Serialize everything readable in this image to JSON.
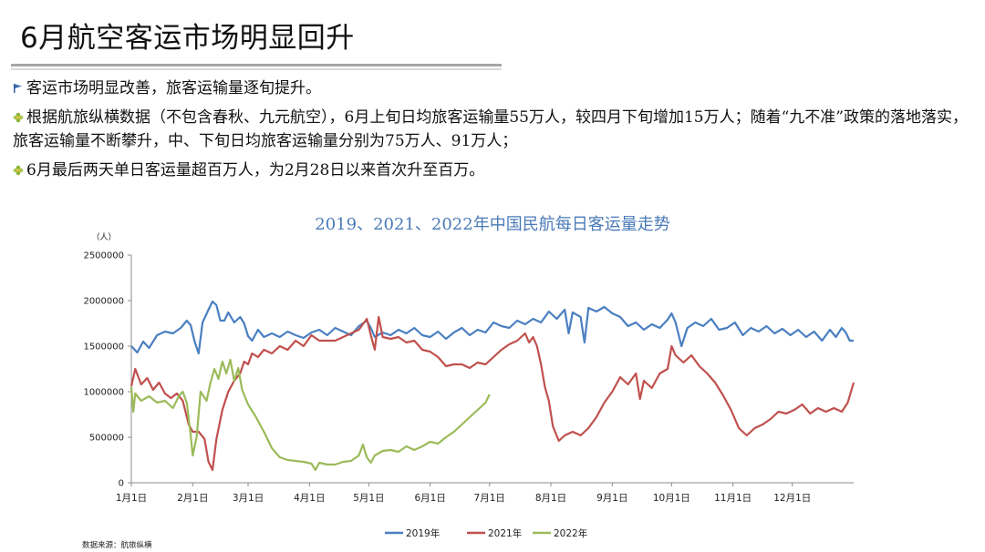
{
  "page": {
    "title": "6月航空客运市场明显回升"
  },
  "bullets": [
    {
      "icon": "flag-icon",
      "text": "客运市场明显改善，旅客运输量逐旬提升。"
    },
    {
      "icon": "flower-bullet-icon",
      "text": "根据航旅纵横数据（不包含春秋、九元航空），6月上旬日均旅客运输量55万人，较四月下旬增加15万人；随着“九不准”政策的落地落实，旅客运输量不断攀升，中、下旬日均旅客运输量分别为75万人、91万人；"
    },
    {
      "icon": "flower-bullet-icon",
      "text": "6月最后两天单日客运量超百万人，为2月28日以来首次升至百万。"
    }
  ],
  "source": "数据来源：航旅纵横",
  "chart_data": {
    "type": "line",
    "title": "2019、2021、2022年中国民航每日客运量走势",
    "ylabel": "（人）",
    "ylim": [
      0,
      2500000
    ],
    "yticks": [
      "0",
      "500000",
      "1000000",
      "1500000",
      "2000000",
      "2500000"
    ],
    "xlim": [
      1,
      366
    ],
    "xticks": [
      {
        "label": "1月1日",
        "day": 1
      },
      {
        "label": "2月1日",
        "day": 32
      },
      {
        "label": "3月1日",
        "day": 60
      },
      {
        "label": "4月1日",
        "day": 91
      },
      {
        "label": "5月1日",
        "day": 121
      },
      {
        "label": "6月1日",
        "day": 152
      },
      {
        "label": "7月1日",
        "day": 182
      },
      {
        "label": "8月1日",
        "day": 213
      },
      {
        "label": "9月1日",
        "day": 244
      },
      {
        "label": "10月1日",
        "day": 274
      },
      {
        "label": "11月1日",
        "day": 305
      },
      {
        "label": "12月1日",
        "day": 335
      }
    ],
    "grid": false,
    "legend": "bottom",
    "series": [
      {
        "name": "2019年",
        "color": "#4a7fc1",
        "points": [
          [
            1,
            1500000
          ],
          [
            4,
            1430000
          ],
          [
            7,
            1550000
          ],
          [
            10,
            1480000
          ],
          [
            14,
            1620000
          ],
          [
            18,
            1660000
          ],
          [
            22,
            1640000
          ],
          [
            26,
            1700000
          ],
          [
            29,
            1780000
          ],
          [
            31,
            1730000
          ],
          [
            33,
            1550000
          ],
          [
            35,
            1420000
          ],
          [
            37,
            1760000
          ],
          [
            40,
            1900000
          ],
          [
            42,
            1990000
          ],
          [
            44,
            1950000
          ],
          [
            46,
            1780000
          ],
          [
            48,
            1780000
          ],
          [
            50,
            1870000
          ],
          [
            53,
            1760000
          ],
          [
            56,
            1820000
          ],
          [
            58,
            1750000
          ],
          [
            60,
            1610000
          ],
          [
            62,
            1560000
          ],
          [
            65,
            1680000
          ],
          [
            68,
            1600000
          ],
          [
            72,
            1640000
          ],
          [
            76,
            1600000
          ],
          [
            80,
            1660000
          ],
          [
            84,
            1620000
          ],
          [
            88,
            1590000
          ],
          [
            92,
            1650000
          ],
          [
            96,
            1680000
          ],
          [
            100,
            1620000
          ],
          [
            104,
            1700000
          ],
          [
            108,
            1660000
          ],
          [
            112,
            1620000
          ],
          [
            116,
            1720000
          ],
          [
            120,
            1780000
          ],
          [
            122,
            1700000
          ],
          [
            124,
            1600000
          ],
          [
            128,
            1650000
          ],
          [
            132,
            1620000
          ],
          [
            136,
            1680000
          ],
          [
            140,
            1640000
          ],
          [
            144,
            1700000
          ],
          [
            148,
            1620000
          ],
          [
            152,
            1600000
          ],
          [
            156,
            1660000
          ],
          [
            160,
            1580000
          ],
          [
            164,
            1650000
          ],
          [
            168,
            1700000
          ],
          [
            172,
            1620000
          ],
          [
            176,
            1680000
          ],
          [
            180,
            1650000
          ],
          [
            184,
            1760000
          ],
          [
            188,
            1720000
          ],
          [
            192,
            1700000
          ],
          [
            196,
            1780000
          ],
          [
            200,
            1740000
          ],
          [
            204,
            1800000
          ],
          [
            208,
            1760000
          ],
          [
            212,
            1880000
          ],
          [
            216,
            1800000
          ],
          [
            220,
            1900000
          ],
          [
            222,
            1640000
          ],
          [
            224,
            1870000
          ],
          [
            228,
            1820000
          ],
          [
            230,
            1540000
          ],
          [
            232,
            1920000
          ],
          [
            236,
            1880000
          ],
          [
            240,
            1930000
          ],
          [
            244,
            1860000
          ],
          [
            248,
            1820000
          ],
          [
            252,
            1720000
          ],
          [
            256,
            1760000
          ],
          [
            260,
            1680000
          ],
          [
            264,
            1740000
          ],
          [
            268,
            1700000
          ],
          [
            272,
            1790000
          ],
          [
            274,
            1860000
          ],
          [
            276,
            1760000
          ],
          [
            279,
            1500000
          ],
          [
            282,
            1700000
          ],
          [
            286,
            1760000
          ],
          [
            290,
            1720000
          ],
          [
            294,
            1800000
          ],
          [
            298,
            1680000
          ],
          [
            302,
            1700000
          ],
          [
            306,
            1760000
          ],
          [
            310,
            1620000
          ],
          [
            314,
            1700000
          ],
          [
            318,
            1660000
          ],
          [
            322,
            1720000
          ],
          [
            326,
            1640000
          ],
          [
            330,
            1690000
          ],
          [
            334,
            1620000
          ],
          [
            338,
            1680000
          ],
          [
            342,
            1600000
          ],
          [
            346,
            1660000
          ],
          [
            350,
            1560000
          ],
          [
            354,
            1680000
          ],
          [
            357,
            1600000
          ],
          [
            360,
            1700000
          ],
          [
            362,
            1650000
          ],
          [
            364,
            1560000
          ],
          [
            366,
            1560000
          ]
        ]
      },
      {
        "name": "2021年",
        "color": "#c0504d",
        "points": [
          [
            1,
            1060000
          ],
          [
            3,
            1250000
          ],
          [
            6,
            1080000
          ],
          [
            9,
            1150000
          ],
          [
            12,
            1020000
          ],
          [
            15,
            1100000
          ],
          [
            18,
            980000
          ],
          [
            21,
            930000
          ],
          [
            24,
            980000
          ],
          [
            27,
            900000
          ],
          [
            30,
            640000
          ],
          [
            32,
            560000
          ],
          [
            35,
            560000
          ],
          [
            38,
            480000
          ],
          [
            40,
            230000
          ],
          [
            42,
            140000
          ],
          [
            44,
            480000
          ],
          [
            47,
            800000
          ],
          [
            50,
            1000000
          ],
          [
            53,
            1120000
          ],
          [
            56,
            1200000
          ],
          [
            58,
            1330000
          ],
          [
            60,
            1300000
          ],
          [
            62,
            1420000
          ],
          [
            65,
            1380000
          ],
          [
            68,
            1460000
          ],
          [
            72,
            1420000
          ],
          [
            76,
            1500000
          ],
          [
            80,
            1460000
          ],
          [
            84,
            1560000
          ],
          [
            88,
            1500000
          ],
          [
            92,
            1620000
          ],
          [
            96,
            1560000
          ],
          [
            100,
            1560000
          ],
          [
            104,
            1560000
          ],
          [
            108,
            1600000
          ],
          [
            112,
            1640000
          ],
          [
            116,
            1680000
          ],
          [
            120,
            1800000
          ],
          [
            122,
            1620000
          ],
          [
            124,
            1460000
          ],
          [
            126,
            1820000
          ],
          [
            128,
            1600000
          ],
          [
            132,
            1580000
          ],
          [
            136,
            1600000
          ],
          [
            140,
            1540000
          ],
          [
            144,
            1560000
          ],
          [
            148,
            1460000
          ],
          [
            152,
            1440000
          ],
          [
            156,
            1380000
          ],
          [
            160,
            1280000
          ],
          [
            164,
            1300000
          ],
          [
            168,
            1300000
          ],
          [
            172,
            1260000
          ],
          [
            176,
            1320000
          ],
          [
            180,
            1300000
          ],
          [
            184,
            1380000
          ],
          [
            188,
            1460000
          ],
          [
            192,
            1520000
          ],
          [
            196,
            1560000
          ],
          [
            200,
            1640000
          ],
          [
            202,
            1540000
          ],
          [
            204,
            1600000
          ],
          [
            206,
            1500000
          ],
          [
            208,
            1300000
          ],
          [
            210,
            1050000
          ],
          [
            212,
            900000
          ],
          [
            214,
            620000
          ],
          [
            217,
            460000
          ],
          [
            220,
            520000
          ],
          [
            224,
            560000
          ],
          [
            228,
            520000
          ],
          [
            232,
            600000
          ],
          [
            236,
            720000
          ],
          [
            240,
            880000
          ],
          [
            244,
            1000000
          ],
          [
            248,
            1160000
          ],
          [
            252,
            1080000
          ],
          [
            256,
            1200000
          ],
          [
            258,
            920000
          ],
          [
            260,
            1120000
          ],
          [
            264,
            1040000
          ],
          [
            268,
            1200000
          ],
          [
            272,
            1250000
          ],
          [
            274,
            1500000
          ],
          [
            276,
            1400000
          ],
          [
            280,
            1320000
          ],
          [
            284,
            1400000
          ],
          [
            288,
            1280000
          ],
          [
            292,
            1200000
          ],
          [
            296,
            1100000
          ],
          [
            300,
            960000
          ],
          [
            304,
            800000
          ],
          [
            308,
            600000
          ],
          [
            312,
            520000
          ],
          [
            316,
            600000
          ],
          [
            320,
            640000
          ],
          [
            324,
            700000
          ],
          [
            328,
            780000
          ],
          [
            332,
            760000
          ],
          [
            336,
            800000
          ],
          [
            340,
            860000
          ],
          [
            344,
            760000
          ],
          [
            348,
            820000
          ],
          [
            352,
            780000
          ],
          [
            356,
            820000
          ],
          [
            360,
            780000
          ],
          [
            363,
            880000
          ],
          [
            366,
            1100000
          ]
        ]
      },
      {
        "name": "2022年",
        "color": "#9bbb59",
        "points": [
          [
            1,
            1050000
          ],
          [
            2,
            780000
          ],
          [
            3,
            980000
          ],
          [
            6,
            900000
          ],
          [
            10,
            950000
          ],
          [
            14,
            880000
          ],
          [
            18,
            900000
          ],
          [
            22,
            820000
          ],
          [
            25,
            950000
          ],
          [
            27,
            1000000
          ],
          [
            29,
            880000
          ],
          [
            31,
            520000
          ],
          [
            32,
            300000
          ],
          [
            34,
            500000
          ],
          [
            36,
            1000000
          ],
          [
            39,
            900000
          ],
          [
            41,
            1100000
          ],
          [
            43,
            1250000
          ],
          [
            45,
            1140000
          ],
          [
            47,
            1330000
          ],
          [
            49,
            1200000
          ],
          [
            51,
            1350000
          ],
          [
            53,
            1120000
          ],
          [
            55,
            1260000
          ],
          [
            57,
            1020000
          ],
          [
            60,
            860000
          ],
          [
            64,
            720000
          ],
          [
            68,
            560000
          ],
          [
            72,
            380000
          ],
          [
            76,
            280000
          ],
          [
            80,
            250000
          ],
          [
            84,
            240000
          ],
          [
            88,
            230000
          ],
          [
            92,
            210000
          ],
          [
            94,
            140000
          ],
          [
            96,
            220000
          ],
          [
            100,
            200000
          ],
          [
            104,
            200000
          ],
          [
            108,
            230000
          ],
          [
            112,
            240000
          ],
          [
            116,
            300000
          ],
          [
            118,
            420000
          ],
          [
            120,
            280000
          ],
          [
            122,
            220000
          ],
          [
            124,
            300000
          ],
          [
            128,
            350000
          ],
          [
            132,
            360000
          ],
          [
            136,
            340000
          ],
          [
            140,
            400000
          ],
          [
            144,
            360000
          ],
          [
            148,
            400000
          ],
          [
            152,
            450000
          ],
          [
            156,
            430000
          ],
          [
            160,
            500000
          ],
          [
            164,
            560000
          ],
          [
            168,
            640000
          ],
          [
            172,
            720000
          ],
          [
            176,
            800000
          ],
          [
            180,
            880000
          ],
          [
            182,
            970000
          ]
        ]
      }
    ]
  }
}
